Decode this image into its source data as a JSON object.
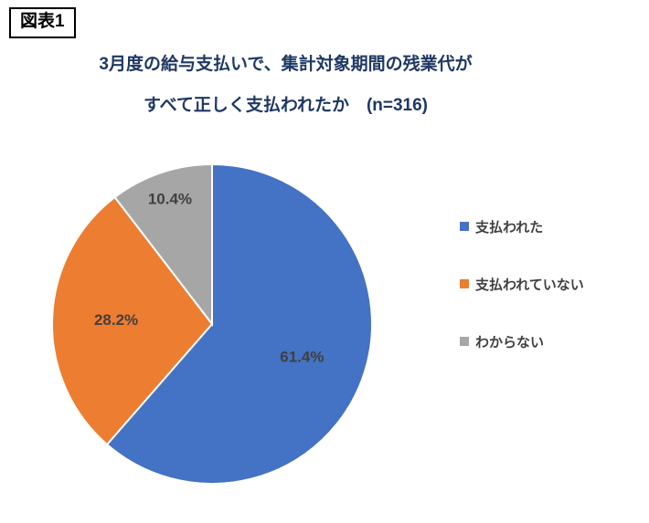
{
  "figure_label": "図表1",
  "title": {
    "line1": "3月度の給与支払いで、集計対象期間の残業代が",
    "line2": "すべて正しく支払われたか　(n=316)"
  },
  "chart_data": {
    "type": "pie",
    "title": "3月度の給与支払いで、集計対象期間の残業代がすべて正しく支払われたか (n=316)",
    "n": 316,
    "categories": [
      "支払われた",
      "支払われていない",
      "わからない"
    ],
    "values": [
      61.4,
      28.2,
      10.4
    ],
    "data_labels": [
      "61.4%",
      "28.2%",
      "10.4%"
    ],
    "colors": [
      "#4472C4",
      "#ED7D31",
      "#A6A6A6"
    ],
    "label_color": "#404040",
    "slice_border_color": "#FFFFFF",
    "start_angle_deg": 0,
    "direction": "clockwise",
    "legend_position": "right"
  }
}
